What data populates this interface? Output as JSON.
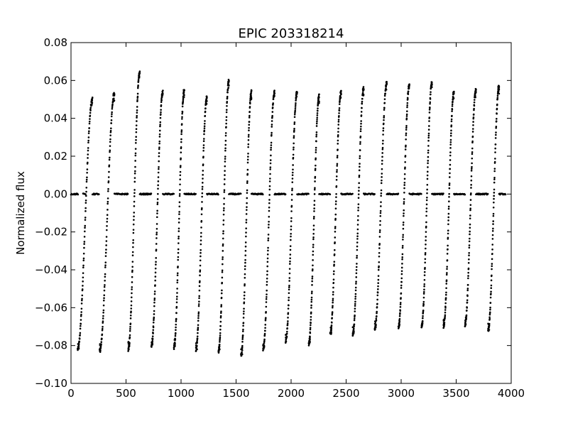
{
  "chart_data": {
    "type": "scatter",
    "title": "EPIC 203318214",
    "xlabel": "",
    "ylabel": "Normalized flux",
    "xlim": [
      0,
      4000
    ],
    "ylim": [
      -0.1,
      0.08
    ],
    "x_ticks": [
      0,
      500,
      1000,
      1500,
      2000,
      2500,
      3000,
      3500,
      4000
    ],
    "x_tick_labels": [
      "0",
      "500",
      "1000",
      "1500",
      "2000",
      "2500",
      "3000",
      "3500",
      "4000"
    ],
    "y_ticks": [
      -0.1,
      -0.08,
      -0.06,
      -0.04,
      -0.02,
      0.0,
      0.02,
      0.04,
      0.06,
      0.08
    ],
    "y_tick_labels": [
      "−0.10",
      "−0.08",
      "−0.06",
      "−0.04",
      "−0.02",
      "0.00",
      "0.02",
      "0.04",
      "0.06",
      "0.08"
    ],
    "grid": false,
    "marker_color": "#000000",
    "cycles": [
      {
        "x_min": 60,
        "x_max": 195,
        "trough": -0.082,
        "peak": 0.05
      },
      {
        "x_min": 260,
        "x_max": 395,
        "trough": -0.083,
        "peak": 0.053
      },
      {
        "x_min": 520,
        "x_max": 625,
        "trough": -0.082,
        "peak": 0.064
      },
      {
        "x_min": 730,
        "x_max": 835,
        "trough": -0.08,
        "peak": 0.054
      },
      {
        "x_min": 935,
        "x_max": 1030,
        "trough": -0.081,
        "peak": 0.055
      },
      {
        "x_min": 1135,
        "x_max": 1235,
        "trough": -0.082,
        "peak": 0.051
      },
      {
        "x_min": 1340,
        "x_max": 1435,
        "trough": -0.083,
        "peak": 0.06
      },
      {
        "x_min": 1545,
        "x_max": 1640,
        "trough": -0.085,
        "peak": 0.054
      },
      {
        "x_min": 1745,
        "x_max": 1850,
        "trough": -0.082,
        "peak": 0.054
      },
      {
        "x_min": 1950,
        "x_max": 2055,
        "trough": -0.078,
        "peak": 0.054
      },
      {
        "x_min": 2160,
        "x_max": 2255,
        "trough": -0.079,
        "peak": 0.052
      },
      {
        "x_min": 2355,
        "x_max": 2455,
        "trough": -0.074,
        "peak": 0.054
      },
      {
        "x_min": 2560,
        "x_max": 2660,
        "trough": -0.074,
        "peak": 0.056
      },
      {
        "x_min": 2760,
        "x_max": 2870,
        "trough": -0.071,
        "peak": 0.059
      },
      {
        "x_min": 2975,
        "x_max": 3075,
        "trough": -0.07,
        "peak": 0.058
      },
      {
        "x_min": 3185,
        "x_max": 3280,
        "trough": -0.07,
        "peak": 0.059
      },
      {
        "x_min": 3385,
        "x_max": 3480,
        "trough": -0.07,
        "peak": 0.054
      },
      {
        "x_min": 3580,
        "x_max": 3680,
        "trough": -0.069,
        "peak": 0.055
      },
      {
        "x_min": 3790,
        "x_max": 3890,
        "trough": -0.072,
        "peak": 0.057
      }
    ],
    "zero_gap_segments": [
      [
        0,
        65
      ],
      [
        110,
        135
      ],
      [
        195,
        255
      ],
      [
        395,
        520
      ],
      [
        625,
        730
      ],
      [
        835,
        935
      ],
      [
        1030,
        1135
      ],
      [
        1235,
        1340
      ],
      [
        1435,
        1545
      ],
      [
        1640,
        1745
      ],
      [
        1850,
        1950
      ],
      [
        2055,
        2160
      ],
      [
        2255,
        2355
      ],
      [
        2455,
        2560
      ],
      [
        2660,
        2760
      ],
      [
        2870,
        2975
      ],
      [
        3075,
        3185
      ],
      [
        3280,
        3385
      ],
      [
        3480,
        3580
      ],
      [
        3680,
        3790
      ],
      [
        3890,
        3950
      ]
    ]
  }
}
